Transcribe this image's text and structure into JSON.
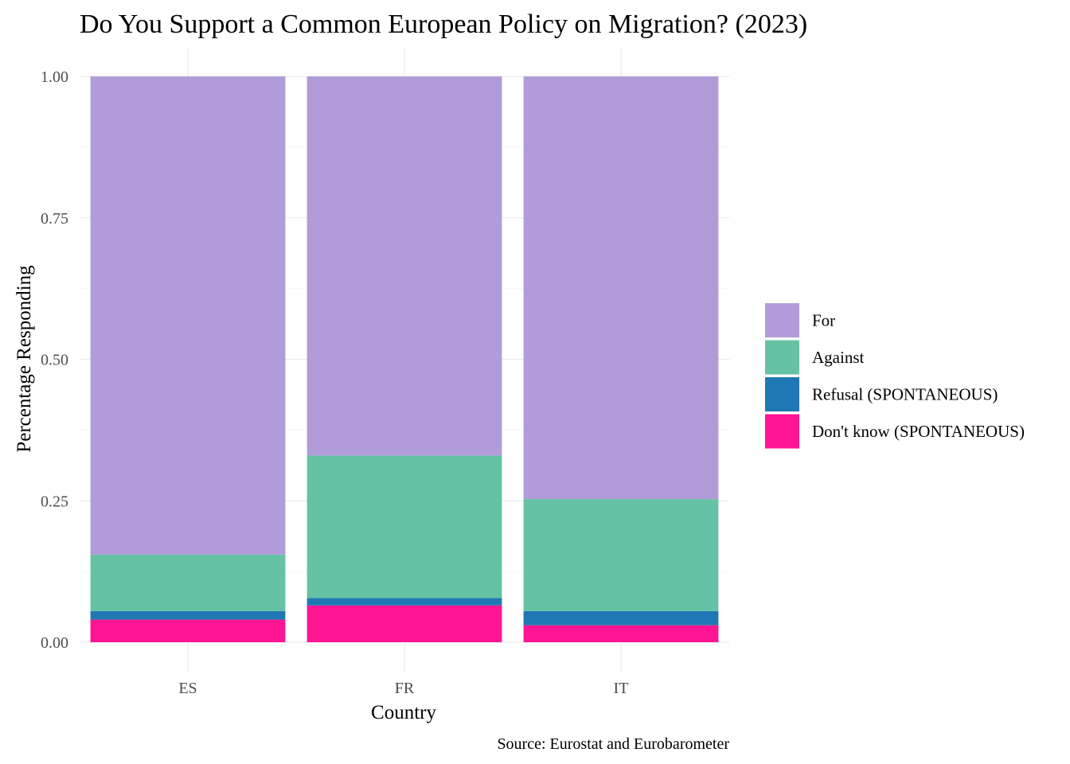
{
  "chart_data": {
    "type": "bar",
    "stacked": true,
    "title": "Do You Support a Common European Policy on Migration? (2023)",
    "xlabel": "Country",
    "ylabel": "Percentage Responding",
    "caption": "Source: Eurostat and Eurobarometer",
    "categories": [
      "ES",
      "FR",
      "IT"
    ],
    "ylim": [
      0,
      1
    ],
    "yticks": [
      "0.00",
      "0.25",
      "0.50",
      "0.75",
      "1.00"
    ],
    "grid": true,
    "legend_position": "right",
    "series": [
      {
        "name": "Don't know (SPONTANEOUS)",
        "color": "#FF1493",
        "values": [
          0.04,
          0.065,
          0.03
        ]
      },
      {
        "name": "Refusal (SPONTANEOUS)",
        "color": "#1F78B4",
        "values": [
          0.015,
          0.013,
          0.025
        ]
      },
      {
        "name": "Against",
        "color": "#66C2A5",
        "values": [
          0.1,
          0.252,
          0.198
        ]
      },
      {
        "name": "For",
        "color": "#B19CD9",
        "values": [
          0.845,
          0.67,
          0.747
        ]
      }
    ],
    "legend_order": [
      "For",
      "Against",
      "Refusal (SPONTANEOUS)",
      "Don't know (SPONTANEOUS)"
    ]
  }
}
